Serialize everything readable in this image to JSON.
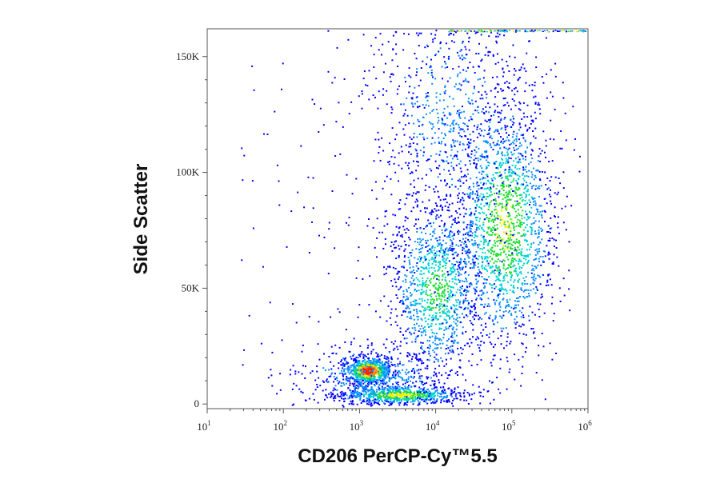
{
  "chart_data": {
    "type": "scatter",
    "subtype": "flow-cytometry-density-dot-plot",
    "xlabel": "CD206 PerCP-Cy™5.5",
    "ylabel": "Side Scatter",
    "x_scale": "log",
    "xlim": [
      10,
      1000000
    ],
    "x_ticks": [
      {
        "value": 10,
        "base": "10",
        "exp": "1"
      },
      {
        "value": 100,
        "base": "10",
        "exp": "2"
      },
      {
        "value": 1000,
        "base": "10",
        "exp": "3"
      },
      {
        "value": 10000,
        "base": "10",
        "exp": "4"
      },
      {
        "value": 100000,
        "base": "10",
        "exp": "5"
      },
      {
        "value": 1000000,
        "base": "10",
        "exp": "6"
      }
    ],
    "y_scale": "linear",
    "ylim": [
      -2000,
      162000
    ],
    "y_ticks": [
      {
        "value": 0,
        "label": "0"
      },
      {
        "value": 50000,
        "label": "50K"
      },
      {
        "value": 100000,
        "label": "100K"
      },
      {
        "value": 150000,
        "label": "150K"
      }
    ],
    "grid": false,
    "legend": "none",
    "density_colormap": [
      "#0000ff",
      "#0a8cff",
      "#00d2d2",
      "#22dc32",
      "#f0f000",
      "#ff8c00",
      "#ff1e00"
    ],
    "populations": [
      {
        "center_x": 1500,
        "center_y": 14000,
        "relative_density": 1.0,
        "peak_color": "#ff1e00"
      },
      {
        "center_x": 5000,
        "center_y": 4000,
        "relative_density": 0.55,
        "peak_color": "#ff8c00"
      },
      {
        "center_x": 8000,
        "center_y": 45000,
        "relative_density": 0.35,
        "peak_color": "#22dc32"
      },
      {
        "center_x": 110000,
        "center_y": 80000,
        "relative_density": 0.7,
        "peak_color": "#f0f000"
      }
    ],
    "saturation_band_y": 160000
  }
}
